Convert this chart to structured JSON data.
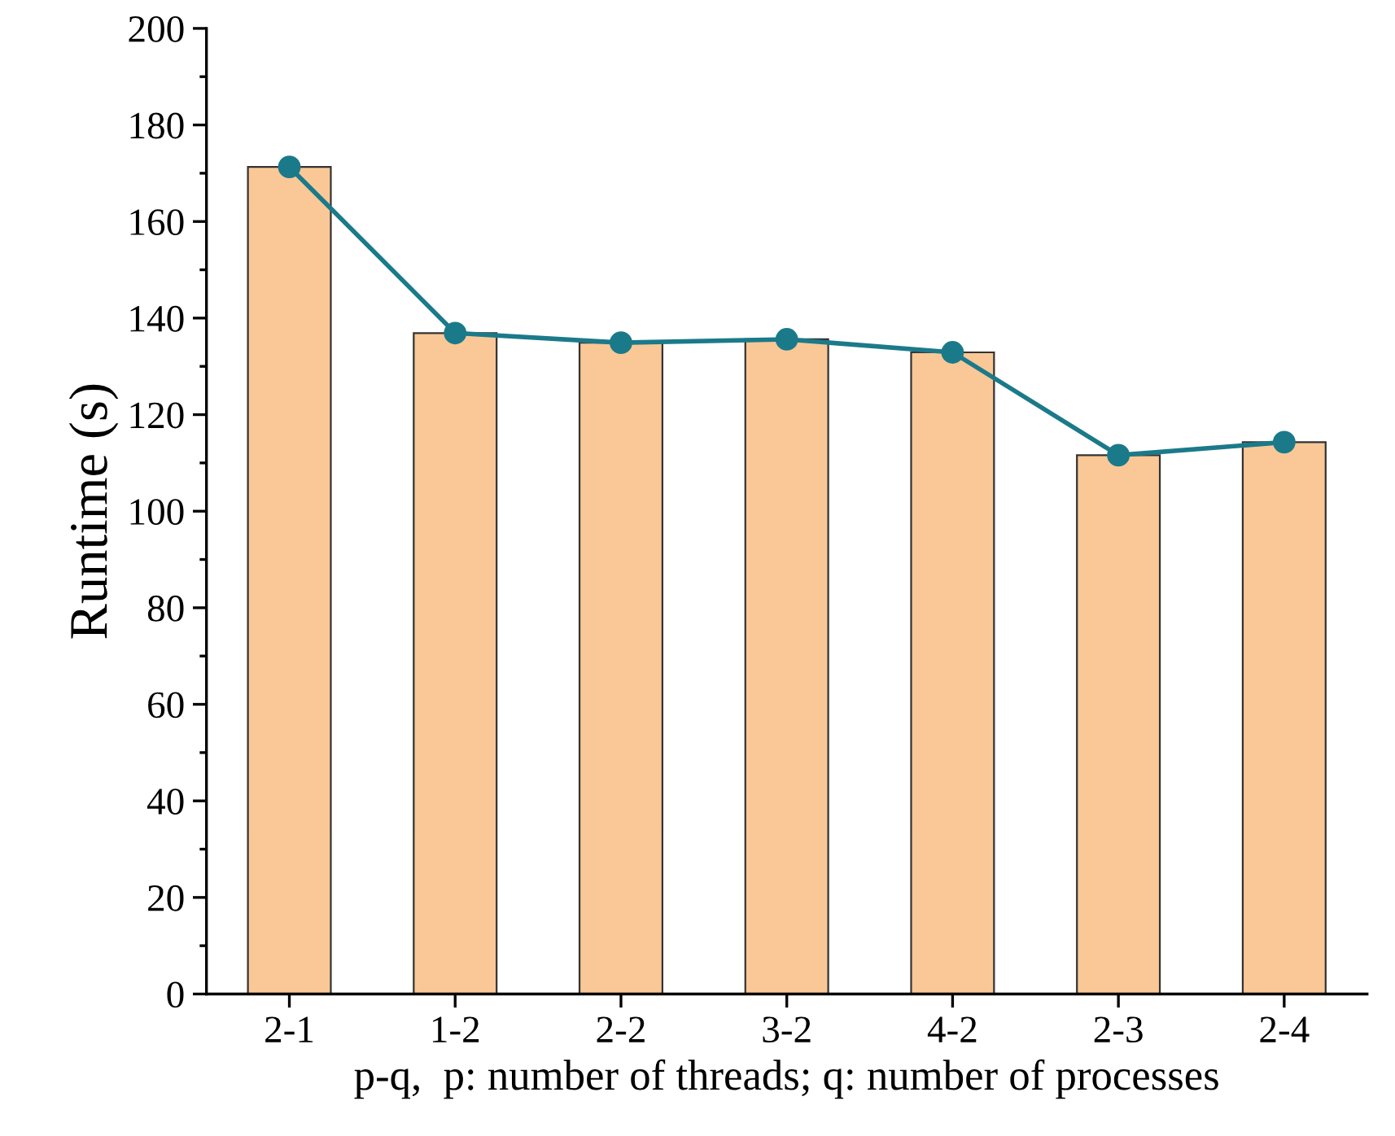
{
  "chart_data": {
    "type": "bar",
    "xlabel": "p-q,  p: number of threads; q: number of processes",
    "ylabel": "Runtime (s)",
    "categories": [
      "2-1",
      "1-2",
      "2-2",
      "3-2",
      "4-2",
      "2-3",
      "2-4"
    ],
    "series": [
      {
        "color": "#f9c896",
        "values": [
          171.3,
          136.9,
          134.9,
          135.6,
          132.9,
          111.6,
          114.3
        ]
      },
      {
        "type": "line",
        "color": "#1b7a8a",
        "marker": "circle",
        "line_style": "solid",
        "values": [
          171.3,
          136.9,
          134.9,
          135.6,
          132.9,
          111.6,
          114.3
        ]
      }
    ],
    "ylim": [
      0,
      200
    ],
    "yticks": [
      0,
      20,
      40,
      60,
      80,
      100,
      120,
      140,
      160,
      180,
      200
    ],
    "grid": false,
    "legend": false
  }
}
